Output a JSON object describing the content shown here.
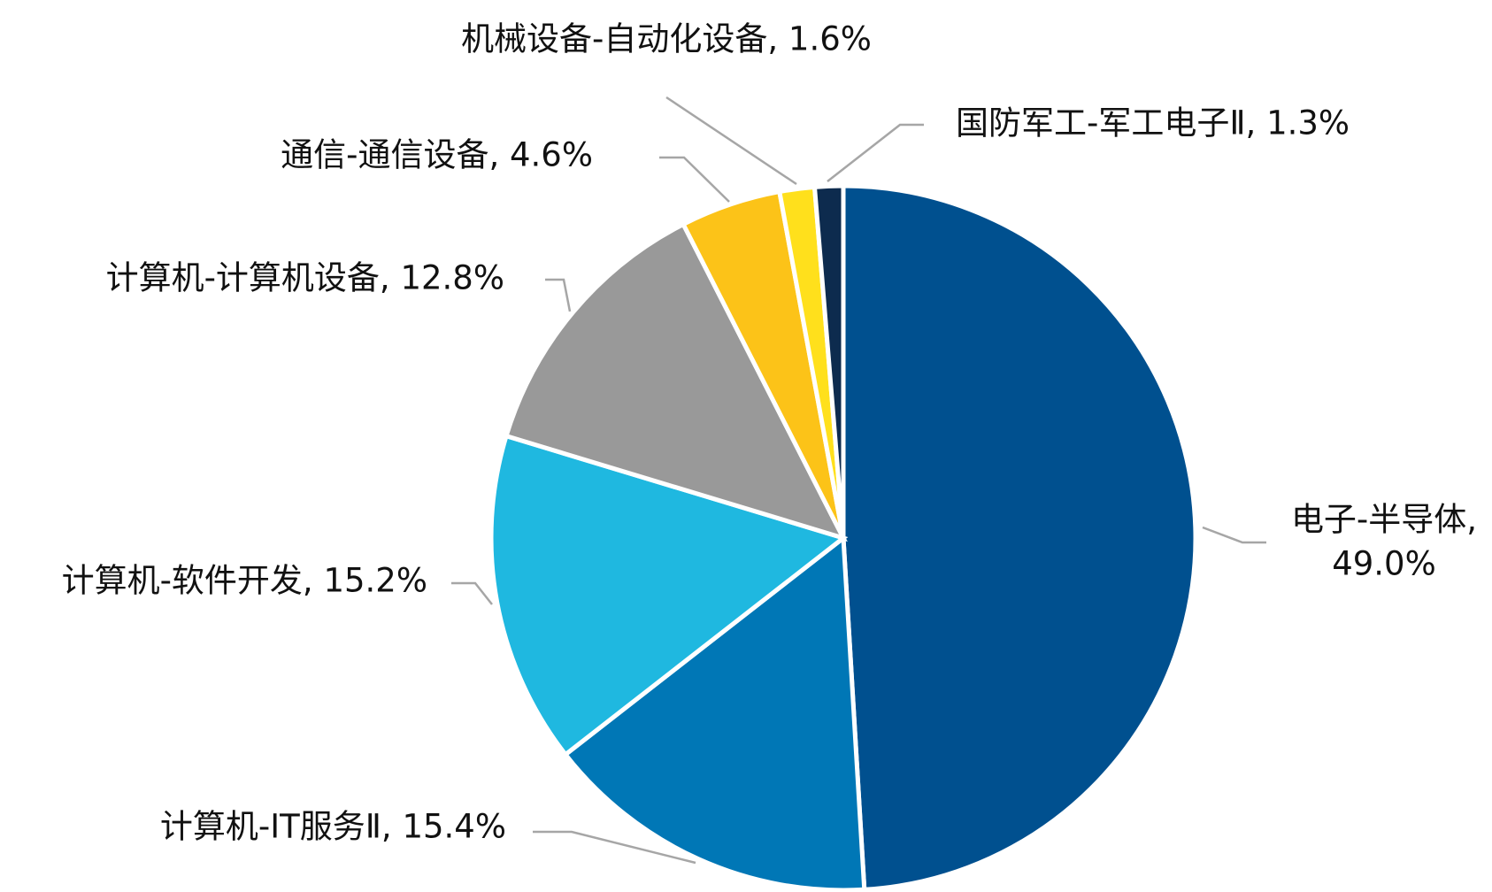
{
  "chart_data": {
    "type": "pie",
    "categories": [
      "电子-半导体",
      "计算机-IT服务Ⅱ",
      "计算机-软件开发",
      "计算机-计算机设备",
      "通信-通信设备",
      "机械设备-自动化设备",
      "国防军工-军工电子Ⅱ"
    ],
    "values": [
      49.0,
      15.4,
      15.2,
      12.8,
      4.6,
      1.6,
      1.3
    ],
    "labels": [
      [
        "电子-半导体,",
        "49.0%"
      ],
      [
        "计算机-IT服务Ⅱ, 15.4%"
      ],
      [
        "计算机-软件开发, 15.2%"
      ],
      [
        "计算机-计算机设备, 12.8%"
      ],
      [
        "通信-通信设备, 4.6%"
      ],
      [
        "机械设备-自动化设备, 1.6%"
      ],
      [
        "国防军工-军工电子Ⅱ, 1.3%"
      ]
    ],
    "colors": [
      "#00508f",
      "#0077b6",
      "#1fb8e0",
      "#999999",
      "#fcc318",
      "#ffe01c",
      "#0d2b4e"
    ]
  }
}
